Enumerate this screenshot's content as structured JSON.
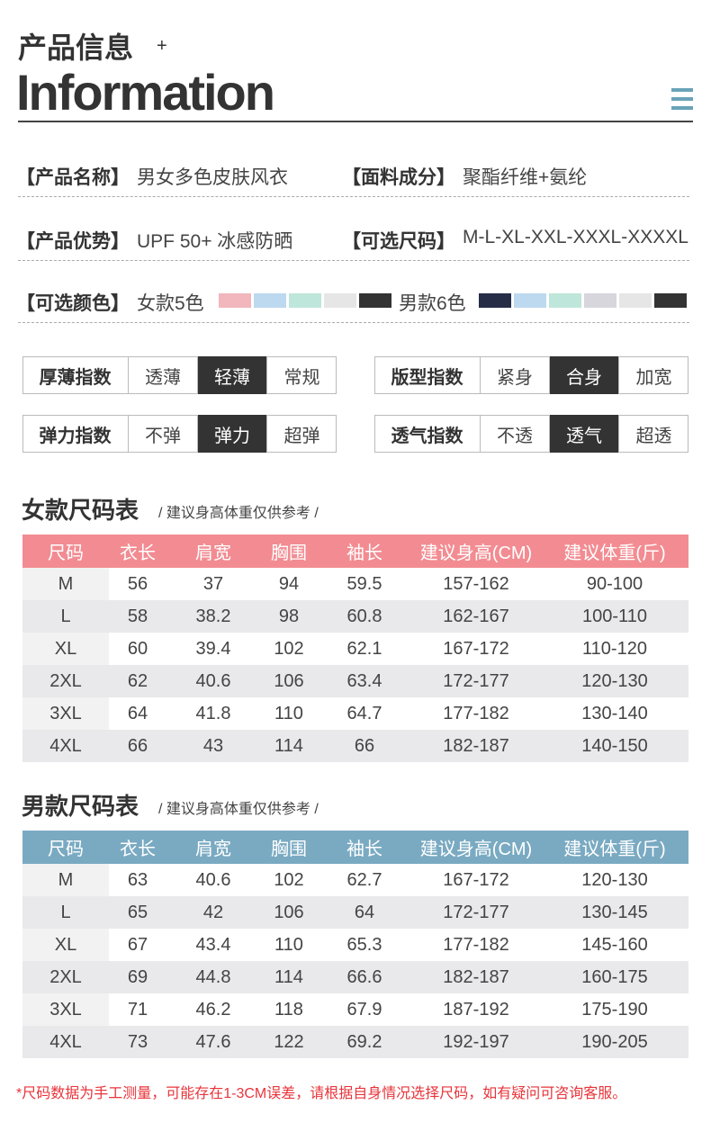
{
  "header": {
    "title_cn": "产品信息",
    "plus": "+",
    "title_en": "Information"
  },
  "info": {
    "rows": [
      [
        {
          "label": "【产品名称】",
          "value": "男女多色皮肤风衣"
        },
        {
          "label": "【面料成分】",
          "value": "聚酯纤维+氨纶"
        }
      ],
      [
        {
          "label": "【产品优势】",
          "value": "UPF 50+ 冰感防晒"
        },
        {
          "label": "【可选尺码】",
          "value": "M-L-XL-XXL-XXXL-XXXXL"
        }
      ]
    ],
    "colors": {
      "label": "【可选颜色】",
      "women": {
        "text": "女款5色",
        "swatches": [
          "#f2b6bd",
          "#bcd9ef",
          "#bfe6da",
          "#e6e6e6",
          "#333333"
        ]
      },
      "men": {
        "text": "男款6色",
        "swatches": [
          "#252d47",
          "#bcd9ef",
          "#bfe6da",
          "#d7d6dc",
          "#e6e6e6",
          "#333333"
        ]
      }
    }
  },
  "indices": [
    {
      "label": "厚薄指数",
      "options": [
        "透薄",
        "轻薄",
        "常规"
      ],
      "selected": 1
    },
    {
      "label": "版型指数",
      "options": [
        "紧身",
        "合身",
        "加宽"
      ],
      "selected": 1
    },
    {
      "label": "弹力指数",
      "options": [
        "不弹",
        "弹力",
        "超弹"
      ],
      "selected": 1
    },
    {
      "label": "透气指数",
      "options": [
        "不透",
        "透气",
        "超透"
      ],
      "selected": 1
    }
  ],
  "tables": [
    {
      "title": "女款尺码表",
      "note": "/ 建议身高体重仅供参考 /",
      "header_color": "#f28c92",
      "headers": [
        "尺码",
        "衣长",
        "肩宽",
        "胸围",
        "袖长",
        "建议身高(CM)",
        "建议体重(斤)"
      ],
      "rows": [
        [
          "M",
          "56",
          "37",
          "94",
          "59.5",
          "157-162",
          "90-100"
        ],
        [
          "L",
          "58",
          "38.2",
          "98",
          "60.8",
          "162-167",
          "100-110"
        ],
        [
          "XL",
          "60",
          "39.4",
          "102",
          "62.1",
          "167-172",
          "110-120"
        ],
        [
          "2XL",
          "62",
          "40.6",
          "106",
          "63.4",
          "172-177",
          "120-130"
        ],
        [
          "3XL",
          "64",
          "41.8",
          "110",
          "64.7",
          "177-182",
          "130-140"
        ],
        [
          "4XL",
          "66",
          "43",
          "114",
          "66",
          "182-187",
          "140-150"
        ]
      ]
    },
    {
      "title": "男款尺码表",
      "note": "/ 建议身高体重仅供参考 /",
      "header_color": "#7aaac2",
      "headers": [
        "尺码",
        "衣长",
        "肩宽",
        "胸围",
        "袖长",
        "建议身高(CM)",
        "建议体重(斤)"
      ],
      "rows": [
        [
          "M",
          "63",
          "40.6",
          "102",
          "62.7",
          "167-172",
          "120-130"
        ],
        [
          "L",
          "65",
          "42",
          "106",
          "64",
          "172-177",
          "130-145"
        ],
        [
          "XL",
          "67",
          "43.4",
          "110",
          "65.3",
          "177-182",
          "145-160"
        ],
        [
          "2XL",
          "69",
          "44.8",
          "114",
          "66.6",
          "182-187",
          "160-175"
        ],
        [
          "3XL",
          "71",
          "46.2",
          "118",
          "67.9",
          "187-192",
          "175-190"
        ],
        [
          "4XL",
          "73",
          "47.6",
          "122",
          "69.2",
          "192-197",
          "190-205"
        ]
      ]
    }
  ],
  "footer": {
    "note": "*尺码数据为手工测量，可能存在1-3CM误差，请根据自身情况选择尺码，如有疑问可咨询客服。"
  }
}
